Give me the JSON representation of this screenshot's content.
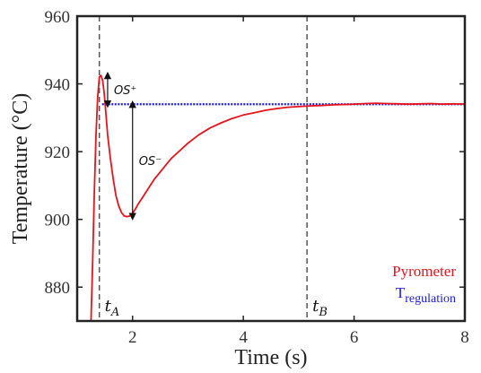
{
  "chart_data": {
    "type": "line",
    "title": "",
    "xlabel": "Time (s)",
    "ylabel": "Temperature (°C)",
    "xlim": [
      1,
      8
    ],
    "ylim": [
      870,
      960
    ],
    "grid": false,
    "legend_position": "bottom-right",
    "x_ticks": [
      2,
      4,
      6,
      8
    ],
    "x_tick_labels": [
      "2",
      "4",
      "6",
      "8"
    ],
    "y_ticks": [
      880,
      900,
      920,
      940,
      960
    ],
    "y_tick_labels": [
      "880",
      "900",
      "920",
      "940",
      "960"
    ],
    "colors": {
      "pyrometer": "#e8141c",
      "regulation": "#1a1ae6",
      "marker_line": "#555555",
      "axis": "#222222"
    },
    "series": [
      {
        "name": "Pyrometer",
        "style": "solid",
        "x": [
          1.25,
          1.28,
          1.31,
          1.34,
          1.37,
          1.4,
          1.43,
          1.46,
          1.49,
          1.52,
          1.55,
          1.6,
          1.65,
          1.7,
          1.75,
          1.8,
          1.85,
          1.9,
          1.95,
          2.0,
          2.05,
          2.1,
          2.2,
          2.3,
          2.4,
          2.5,
          2.6,
          2.7,
          2.8,
          2.9,
          3.0,
          3.2,
          3.4,
          3.6,
          3.8,
          4.0,
          4.2,
          4.4,
          4.6,
          4.8,
          5.0,
          5.2,
          5.4,
          5.6,
          5.8,
          6.0,
          6.2,
          6.4,
          6.6,
          6.8,
          7.0,
          7.2,
          7.4,
          7.6,
          7.8,
          8.0
        ],
        "values": [
          870,
          888,
          908,
          925,
          936,
          942,
          942.5,
          941,
          937,
          931,
          925,
          918,
          912,
          907,
          904,
          902,
          901,
          900.8,
          901,
          901.8,
          903,
          904.5,
          907,
          909.5,
          912,
          914,
          916,
          918,
          919.5,
          921,
          922.5,
          925,
          927,
          928.5,
          929.8,
          930.8,
          931.5,
          932.2,
          932.7,
          933.1,
          933.3,
          933.5,
          933.6,
          933.8,
          933.9,
          934.0,
          934.2,
          934.3,
          934.2,
          934.1,
          934.0,
          934.1,
          934.2,
          934.0,
          934.1,
          934.0
        ]
      },
      {
        "name": "T",
        "name_subscript": "regulation",
        "style": "dotted",
        "x": [
          1.45,
          8.0
        ],
        "values": [
          934,
          934
        ]
      }
    ],
    "vertical_markers": [
      {
        "label": "t",
        "label_subscript": "A",
        "x": 1.4
      },
      {
        "label": "t",
        "label_subscript": "B",
        "x": 5.15
      }
    ],
    "annotations": [
      {
        "text": "OS⁺",
        "x": 1.55,
        "y_from": 942.5,
        "y_to": 934
      },
      {
        "text": "OS⁻",
        "x": 2.0,
        "y_from": 934,
        "y_to": 900.8
      }
    ]
  }
}
